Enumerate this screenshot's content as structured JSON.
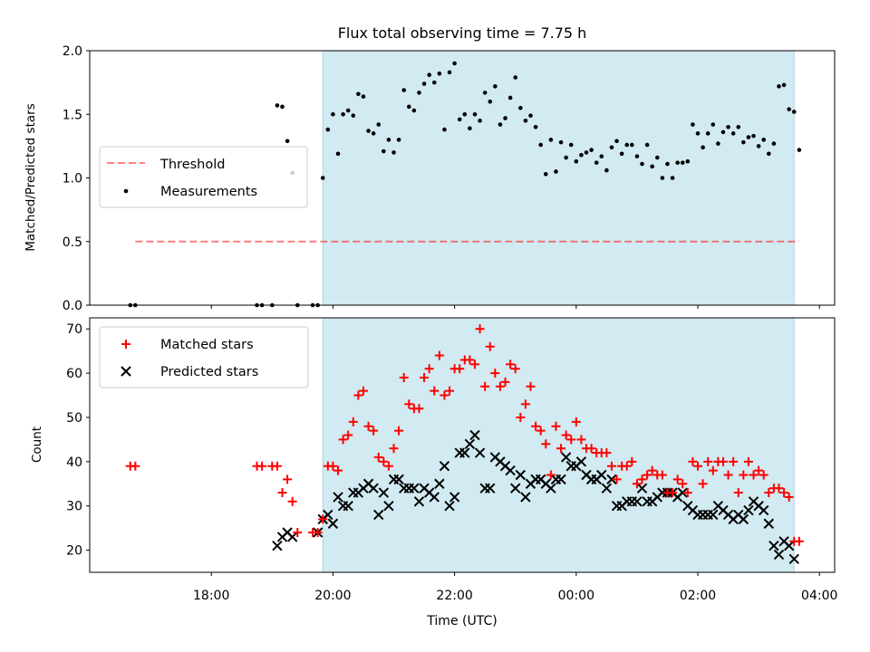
{
  "colors": {
    "band": "#add8e6",
    "threshold": "#ff0000",
    "measurement": "#000000",
    "matched": "#ff0000",
    "predicted": "#000000"
  },
  "chart_data": [
    {
      "type": "scatter",
      "panel": "top",
      "title": "Flux total observing time = 7.75 h",
      "xlabel": "",
      "ylabel": "Matched/Predicted stars",
      "ylim": [
        0,
        2.0
      ],
      "yticks": [
        "0.0",
        "0.5",
        "1.0",
        "1.5",
        "2.0"
      ],
      "observing_window": [
        "19:50",
        "03:35"
      ],
      "legend": {
        "position": "center-left",
        "entries": [
          "Threshold",
          "Measurements"
        ]
      },
      "threshold": {
        "name": "Threshold",
        "value": 0.5,
        "x_range": [
          "16:45",
          "03:40"
        ],
        "style": "dashed"
      },
      "series": [
        {
          "name": "Measurements",
          "x": [
            "16:40",
            "16:45",
            "18:45",
            "18:50",
            "19:00",
            "19:05",
            "19:10",
            "19:15",
            "19:20",
            "19:25",
            "19:40",
            "19:45",
            "19:50",
            "19:55",
            "20:00",
            "20:05",
            "20:10",
            "20:15",
            "20:20",
            "20:25",
            "20:30",
            "20:35",
            "20:40",
            "20:45",
            "20:50",
            "20:55",
            "21:00",
            "21:05",
            "21:10",
            "21:15",
            "21:20",
            "21:25",
            "21:30",
            "21:35",
            "21:40",
            "21:45",
            "21:50",
            "21:55",
            "22:00",
            "22:05",
            "22:10",
            "22:15",
            "22:20",
            "22:25",
            "22:30",
            "22:35",
            "22:40",
            "22:45",
            "22:50",
            "22:55",
            "23:00",
            "23:05",
            "23:10",
            "23:15",
            "23:20",
            "23:25",
            "23:30",
            "23:35",
            "23:40",
            "23:45",
            "23:50",
            "23:55",
            "00:00",
            "00:05",
            "00:10",
            "00:15",
            "00:20",
            "00:25",
            "00:30",
            "00:35",
            "00:40",
            "00:45",
            "00:50",
            "00:55",
            "01:00",
            "01:05",
            "01:10",
            "01:15",
            "01:20",
            "01:25",
            "01:30",
            "01:35",
            "01:40",
            "01:45",
            "01:50",
            "01:55",
            "02:00",
            "02:05",
            "02:10",
            "02:15",
            "02:20",
            "02:25",
            "02:30",
            "02:35",
            "02:40",
            "02:45",
            "02:50",
            "02:55",
            "03:00",
            "03:05",
            "03:10",
            "03:15",
            "03:20",
            "03:25",
            "03:30",
            "03:35",
            "03:40"
          ],
          "y": [
            0,
            0,
            0,
            0,
            0,
            1.57,
            1.56,
            1.29,
            1.04,
            0,
            0,
            0,
            1.0,
            1.38,
            1.5,
            1.19,
            1.5,
            1.53,
            1.49,
            1.66,
            1.64,
            1.37,
            1.35,
            1.42,
            1.21,
            1.3,
            1.2,
            1.3,
            1.69,
            1.56,
            1.53,
            1.67,
            1.74,
            1.81,
            1.75,
            1.82,
            1.38,
            1.83,
            1.9,
            1.46,
            1.5,
            1.39,
            1.5,
            1.45,
            1.67,
            1.6,
            1.72,
            1.42,
            1.47,
            1.63,
            1.79,
            1.55,
            1.45,
            1.49,
            1.4,
            1.26,
            1.03,
            1.3,
            1.05,
            1.28,
            1.16,
            1.26,
            1.13,
            1.18,
            1.2,
            1.22,
            1.12,
            1.17,
            1.06,
            1.24,
            1.29,
            1.19,
            1.26,
            1.26,
            1.17,
            1.11,
            1.26,
            1.09,
            1.16,
            1.0,
            1.11,
            1.0,
            1.12,
            1.12,
            1.13,
            1.42,
            1.35,
            1.24,
            1.35,
            1.42,
            1.27,
            1.36,
            1.4,
            1.35,
            1.4,
            1.28,
            1.32,
            1.33,
            1.25,
            1.3,
            1.19,
            1.27,
            1.72,
            1.73,
            1.54,
            1.52,
            1.22
          ]
        }
      ]
    },
    {
      "type": "scatter",
      "panel": "bottom",
      "xlabel": "Time (UTC)",
      "ylabel": "Count",
      "ylim": [
        15,
        72.5
      ],
      "yticks": [
        "20",
        "30",
        "40",
        "50",
        "60",
        "70"
      ],
      "xlim": [
        "16:00",
        "04:15"
      ],
      "xticks": [
        "18:00",
        "20:00",
        "22:00",
        "00:00",
        "02:00",
        "04:00"
      ],
      "observing_window": [
        "19:50",
        "03:35"
      ],
      "legend": {
        "position": "top-left",
        "entries": [
          "Matched stars",
          "Predicted stars"
        ]
      },
      "series": [
        {
          "name": "Matched stars",
          "marker": "plus",
          "x": [
            "16:40",
            "16:45",
            "18:45",
            "18:50",
            "19:00",
            "19:05",
            "19:10",
            "19:15",
            "19:20",
            "19:25",
            "19:40",
            "19:45",
            "19:50",
            "19:55",
            "20:00",
            "20:05",
            "20:10",
            "20:15",
            "20:20",
            "20:25",
            "20:30",
            "20:35",
            "20:40",
            "20:45",
            "20:50",
            "20:55",
            "21:00",
            "21:05",
            "21:10",
            "21:15",
            "21:20",
            "21:25",
            "21:30",
            "21:35",
            "21:40",
            "21:45",
            "21:50",
            "21:55",
            "22:00",
            "22:05",
            "22:10",
            "22:15",
            "22:20",
            "22:25",
            "22:30",
            "22:35",
            "22:40",
            "22:45",
            "22:50",
            "22:55",
            "23:00",
            "23:05",
            "23:10",
            "23:15",
            "23:20",
            "23:25",
            "23:30",
            "23:35",
            "23:40",
            "23:45",
            "23:50",
            "23:55",
            "00:00",
            "00:05",
            "00:10",
            "00:15",
            "00:20",
            "00:25",
            "00:30",
            "00:35",
            "00:40",
            "00:45",
            "00:50",
            "00:55",
            "01:00",
            "01:05",
            "01:10",
            "01:15",
            "01:20",
            "01:25",
            "01:30",
            "01:35",
            "01:40",
            "01:45",
            "01:50",
            "01:55",
            "02:00",
            "02:05",
            "02:10",
            "02:15",
            "02:20",
            "02:25",
            "02:30",
            "02:35",
            "02:40",
            "02:45",
            "02:50",
            "02:55",
            "03:00",
            "03:05",
            "03:10",
            "03:15",
            "03:20",
            "03:25",
            "03:30",
            "03:35",
            "03:40"
          ],
          "y": [
            39,
            39,
            39,
            39,
            39,
            39,
            33,
            36,
            31,
            24,
            24,
            24,
            27,
            39,
            39,
            38,
            45,
            46,
            49,
            55,
            56,
            48,
            47,
            41,
            40,
            39,
            43,
            47,
            59,
            53,
            52,
            52,
            59,
            61,
            56,
            64,
            55,
            56,
            61,
            61,
            63,
            63,
            62,
            70,
            57,
            66,
            60,
            57,
            58,
            62,
            61,
            50,
            53,
            57,
            48,
            47,
            44,
            37,
            48,
            43,
            46,
            45,
            49,
            45,
            43,
            43,
            42,
            42,
            42,
            39,
            36,
            39,
            39,
            40,
            35,
            36,
            37,
            38,
            37,
            37,
            33,
            33,
            36,
            35,
            33,
            40,
            39,
            35,
            40,
            38,
            40,
            40,
            37,
            40,
            33,
            37,
            40,
            37,
            38,
            37,
            33,
            34,
            34,
            33,
            32,
            22,
            22
          ]
        },
        {
          "name": "Predicted stars",
          "marker": "x",
          "x": [
            "19:05",
            "19:10",
            "19:15",
            "19:20",
            "19:45",
            "19:50",
            "19:55",
            "20:00",
            "20:05",
            "20:10",
            "20:15",
            "20:20",
            "20:25",
            "20:30",
            "20:35",
            "20:40",
            "20:45",
            "20:50",
            "20:55",
            "21:00",
            "21:05",
            "21:10",
            "21:15",
            "21:20",
            "21:25",
            "21:30",
            "21:35",
            "21:40",
            "21:45",
            "21:50",
            "21:55",
            "22:00",
            "22:05",
            "22:10",
            "22:15",
            "22:20",
            "22:25",
            "22:30",
            "22:35",
            "22:40",
            "22:45",
            "22:50",
            "22:55",
            "23:00",
            "23:05",
            "23:10",
            "23:15",
            "23:20",
            "23:25",
            "23:30",
            "23:35",
            "23:40",
            "23:45",
            "23:50",
            "23:55",
            "00:00",
            "00:05",
            "00:10",
            "00:15",
            "00:20",
            "00:25",
            "00:30",
            "00:35",
            "00:40",
            "00:45",
            "00:50",
            "00:55",
            "01:00",
            "01:05",
            "01:10",
            "01:15",
            "01:20",
            "01:25",
            "01:30",
            "01:35",
            "01:40",
            "01:45",
            "01:50",
            "01:55",
            "02:00",
            "02:05",
            "02:10",
            "02:15",
            "02:20",
            "02:25",
            "02:30",
            "02:35",
            "02:40",
            "02:45",
            "02:50",
            "02:55",
            "03:00",
            "03:05",
            "03:10",
            "03:15",
            "03:20",
            "03:25",
            "03:30",
            "03:35"
          ],
          "y": [
            21,
            23,
            24,
            23,
            24,
            27,
            28,
            26,
            32,
            30,
            30,
            33,
            33,
            34,
            35,
            34,
            28,
            33,
            30,
            36,
            36,
            34,
            34,
            34,
            31,
            34,
            33,
            32,
            35,
            39,
            30,
            32,
            42,
            42,
            44,
            46,
            42,
            34,
            34,
            41,
            40,
            39,
            38,
            34,
            37,
            32,
            35,
            36,
            36,
            35,
            34,
            36,
            36,
            41,
            39,
            39,
            40,
            37,
            36,
            36,
            37,
            34,
            36,
            30,
            30,
            31,
            31,
            31,
            34,
            31,
            31,
            32,
            33,
            33,
            33,
            32,
            33,
            30,
            29,
            28,
            28,
            28,
            28,
            30,
            29,
            28,
            27,
            28,
            27,
            29,
            31,
            30,
            29,
            26,
            21,
            19,
            22,
            21,
            18
          ]
        }
      ]
    }
  ]
}
